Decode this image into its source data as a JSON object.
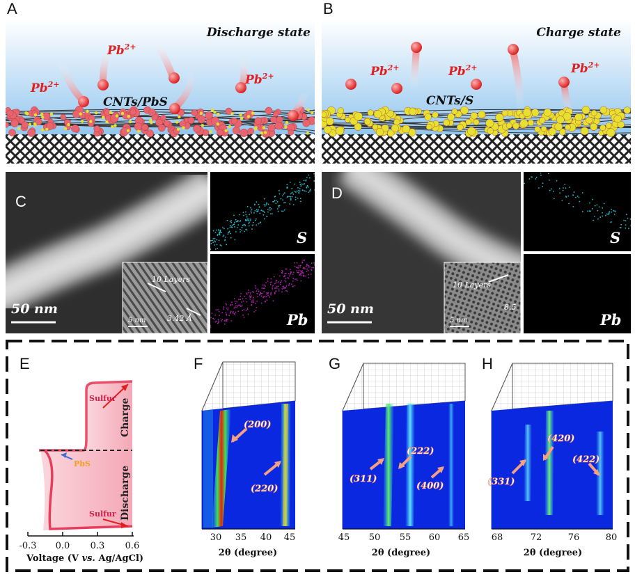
{
  "panel_labels": {
    "a": "A",
    "b": "B",
    "c": "C",
    "d": "D",
    "e": "E",
    "f": "F",
    "g": "G",
    "h": "H"
  },
  "panel_a": {
    "state": "Discharge state",
    "material": "CNTs/PbS",
    "ion": "Pb",
    "ion_charge": "2+"
  },
  "panel_b": {
    "state": "Charge state",
    "material": "CNTs/S",
    "ion": "Pb",
    "ion_charge": "2+"
  },
  "panel_c": {
    "scale": "50 nm",
    "inset_layers": "10 Layers",
    "inset_d": "3.42 Å",
    "inset_scale": "5 nm",
    "map_s": "S",
    "map_pb": "Pb"
  },
  "panel_d": {
    "scale": "50 nm",
    "inset_layers": "10 Layers",
    "inset_d": "8.5",
    "inset_scale": "5 nm",
    "map_s": "S",
    "map_pb": "Pb"
  },
  "panel_e": {
    "xlabel": "Voltage (V vs. Ag/AgCl)",
    "xlabel_pre": "Voltage (V ",
    "xlabel_vs": "vs.",
    "xlabel_post": " Ag/AgCl)",
    "xticks": [
      "-0.3",
      "0.0",
      "0.3",
      "0.6"
    ],
    "label_charge": "Charge",
    "label_discharge": "Discharge",
    "label_sulfur_top": "Sulfur",
    "label_sulfur_bottom": "Sulfur",
    "label_pbs": "PbS"
  },
  "panel_f": {
    "xlabel": "2θ (degree)",
    "xticks": [
      "30",
      "35",
      "40",
      "45"
    ],
    "peaks": [
      "(200)",
      "(220)"
    ]
  },
  "panel_g": {
    "xlabel": "2θ (degree)",
    "xticks": [
      "45",
      "50",
      "55",
      "60",
      "65"
    ],
    "peaks": [
      "(311)",
      "(222)",
      "(400)"
    ]
  },
  "panel_h": {
    "xlabel": "2θ (degree)",
    "xticks": [
      "68",
      "72",
      "76",
      "80"
    ],
    "peaks": [
      "(331)",
      "(420)",
      "(422)"
    ]
  },
  "colors": {
    "ion_red": "#e02020",
    "pbs_particle": "#e8646e",
    "sulfur_particle": "#e6e030",
    "xrd_background": "#0a28e0",
    "discharge_curve": "#e83c5c",
    "charge_curve": "#e8506a",
    "pbs_curve": "#5a8ee0"
  }
}
